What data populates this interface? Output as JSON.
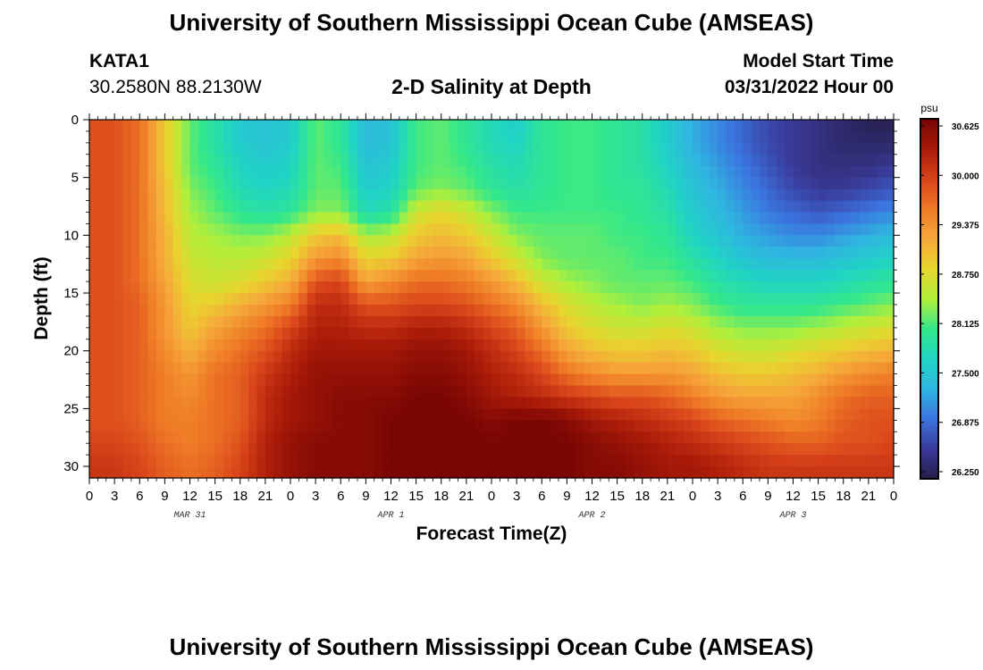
{
  "header": {
    "title": "University of Southern Mississippi Ocean Cube (AMSEAS)",
    "station_name": "KATA1",
    "station_coords": "30.2580N  88.2130W",
    "subtitle": "2-D Salinity at Depth",
    "model_start_label": "Model Start Time",
    "model_start_value": "03/31/2022 Hour 00"
  },
  "footer": {
    "title": "University of Southern Mississippi Ocean Cube (AMSEAS)"
  },
  "colors": {
    "colormap": [
      "#251d4a",
      "#3a3a99",
      "#3b74e0",
      "#2fb6e0",
      "#20d4c4",
      "#34e88a",
      "#b2ef3a",
      "#e8d52e",
      "#f6a83a",
      "#ef7a26",
      "#d8431a",
      "#a81a08",
      "#760404"
    ]
  },
  "chart_data": {
    "type": "heatmap",
    "title": "2-D Salinity at Depth",
    "xlabel": "Forecast Time(Z)",
    "ylabel": "Depth (ft)",
    "x_unit": "hours since 03/31/2022 00Z",
    "x_range": [
      0,
      96
    ],
    "x_tick_hours": [
      0,
      3,
      6,
      9,
      12,
      15,
      18,
      21,
      24,
      27,
      30,
      33,
      36,
      39,
      42,
      45,
      48,
      51,
      54,
      57,
      60,
      63,
      66,
      69,
      72,
      75,
      78,
      81,
      84,
      87,
      90,
      93,
      96
    ],
    "x_tick_labels": [
      "0",
      "3",
      "6",
      "9",
      "12",
      "15",
      "18",
      "21",
      "0",
      "3",
      "6",
      "9",
      "12",
      "15",
      "18",
      "21",
      "0",
      "3",
      "6",
      "9",
      "12",
      "15",
      "18",
      "21",
      "0",
      "3",
      "6",
      "9",
      "12",
      "15",
      "18",
      "21",
      "0"
    ],
    "date_labels": [
      {
        "label": "MAR 31",
        "hour": 12
      },
      {
        "label": "APR 1",
        "hour": 36
      },
      {
        "label": "APR 2",
        "hour": 60
      },
      {
        "label": "APR 3",
        "hour": 84
      }
    ],
    "y_range": [
      0,
      31
    ],
    "y_ticks": [
      0,
      5,
      10,
      15,
      20,
      25,
      30
    ],
    "y_tick_labels": [
      "0",
      "5",
      "10",
      "15",
      "20",
      "25",
      "30"
    ],
    "colorbar": {
      "unit": "psu",
      "min": 26.25,
      "max": 30.625,
      "ticks": [
        26.25,
        26.875,
        27.5,
        28.125,
        28.75,
        29.375,
        30.0,
        30.625
      ],
      "tick_labels": [
        "26.250",
        "26.875",
        "27.500",
        "28.125",
        "28.750",
        "29.375",
        "30.000",
        "30.625"
      ]
    },
    "grid_depths_ft": [
      0,
      2,
      4,
      6,
      8,
      10,
      12,
      14,
      16,
      18,
      20,
      22,
      24,
      26,
      28,
      30
    ],
    "grid_hours": [
      0,
      3,
      6,
      9,
      12,
      15,
      18,
      21,
      24,
      27,
      30,
      33,
      36,
      39,
      42,
      45,
      48,
      51,
      54,
      57,
      60,
      63,
      66,
      69,
      72,
      75,
      78,
      81,
      84,
      87,
      90,
      93,
      96
    ],
    "salinity_psu": [
      [
        29.8,
        29.8,
        29.6,
        28.9,
        28.2,
        27.9,
        27.6,
        27.5,
        27.6,
        28.2,
        28.0,
        27.4,
        27.5,
        28.1,
        28.2,
        28.0,
        27.8,
        27.6,
        28.0,
        28.1,
        28.1,
        28.0,
        27.9,
        27.6,
        27.3,
        27.1,
        26.9,
        26.7,
        26.6,
        26.5,
        26.4,
        26.3,
        26.3
      ],
      [
        29.8,
        29.8,
        29.6,
        28.9,
        28.2,
        27.9,
        27.6,
        27.5,
        27.6,
        28.2,
        28.0,
        27.4,
        27.5,
        28.1,
        28.2,
        28.0,
        27.8,
        27.7,
        28.0,
        28.1,
        28.1,
        28.0,
        27.9,
        27.6,
        27.3,
        27.1,
        26.9,
        26.7,
        26.6,
        26.5,
        26.4,
        26.4,
        26.4
      ],
      [
        29.8,
        29.8,
        29.6,
        28.9,
        28.2,
        28.0,
        27.7,
        27.6,
        27.7,
        28.2,
        28.1,
        27.5,
        27.6,
        28.1,
        28.2,
        28.1,
        27.9,
        27.8,
        28.0,
        28.1,
        28.1,
        28.0,
        27.9,
        27.7,
        27.4,
        27.2,
        27.0,
        26.8,
        26.6,
        26.5,
        26.5,
        26.5,
        26.6
      ],
      [
        29.8,
        29.8,
        29.6,
        29.0,
        28.3,
        28.1,
        27.8,
        27.7,
        27.8,
        28.2,
        28.2,
        27.6,
        27.7,
        28.2,
        28.3,
        28.2,
        28.0,
        27.9,
        28.0,
        28.1,
        28.1,
        28.0,
        28.0,
        27.8,
        27.5,
        27.3,
        27.1,
        26.9,
        26.7,
        26.6,
        26.6,
        26.7,
        26.8
      ],
      [
        29.8,
        29.8,
        29.6,
        29.0,
        28.4,
        28.2,
        28.0,
        27.9,
        28.0,
        28.3,
        28.3,
        27.8,
        27.9,
        28.6,
        28.8,
        28.6,
        28.3,
        28.1,
        28.1,
        28.1,
        28.1,
        28.1,
        28.0,
        27.9,
        27.6,
        27.4,
        27.2,
        27.0,
        26.9,
        26.8,
        26.9,
        27.0,
        27.1
      ],
      [
        29.8,
        29.8,
        29.6,
        29.1,
        28.5,
        28.4,
        28.3,
        28.3,
        28.5,
        28.9,
        29.0,
        28.4,
        28.5,
        28.9,
        29.0,
        28.9,
        28.6,
        28.3,
        28.2,
        28.2,
        28.2,
        28.1,
        28.1,
        28.0,
        27.7,
        27.5,
        27.3,
        27.2,
        27.1,
        27.1,
        27.2,
        27.3,
        27.4
      ],
      [
        29.8,
        29.8,
        29.6,
        29.1,
        28.6,
        28.5,
        28.5,
        28.6,
        28.8,
        29.3,
        29.4,
        28.8,
        28.9,
        29.2,
        29.3,
        29.2,
        28.9,
        28.6,
        28.3,
        28.2,
        28.2,
        28.2,
        28.1,
        28.1,
        27.9,
        27.7,
        27.5,
        27.4,
        27.4,
        27.4,
        27.5,
        27.6,
        27.7
      ],
      [
        29.8,
        29.8,
        29.6,
        29.2,
        28.7,
        28.6,
        28.7,
        28.9,
        29.1,
        29.8,
        29.9,
        29.2,
        29.4,
        29.6,
        29.6,
        29.5,
        29.3,
        29.0,
        28.6,
        28.4,
        28.3,
        28.2,
        28.2,
        28.2,
        28.1,
        27.9,
        27.8,
        27.7,
        27.7,
        27.7,
        27.8,
        27.9,
        28.0
      ],
      [
        29.8,
        29.8,
        29.7,
        29.3,
        28.8,
        28.9,
        29.1,
        29.3,
        29.5,
        30.1,
        30.1,
        29.8,
        29.8,
        29.9,
        29.9,
        29.8,
        29.6,
        29.4,
        29.0,
        28.7,
        28.5,
        28.4,
        28.3,
        28.4,
        28.3,
        28.1,
        28.0,
        28.0,
        28.0,
        28.0,
        28.1,
        28.2,
        28.3
      ],
      [
        29.8,
        29.8,
        29.7,
        29.3,
        28.9,
        29.2,
        29.4,
        29.6,
        29.9,
        30.2,
        30.2,
        30.1,
        30.1,
        30.2,
        30.2,
        30.1,
        29.9,
        29.7,
        29.3,
        28.9,
        28.7,
        28.6,
        28.6,
        28.7,
        28.6,
        28.4,
        28.3,
        28.3,
        28.3,
        28.4,
        28.5,
        28.6,
        28.7
      ],
      [
        29.8,
        29.8,
        29.7,
        29.4,
        29.1,
        29.4,
        29.6,
        29.8,
        30.1,
        30.3,
        30.3,
        30.3,
        30.3,
        30.4,
        30.4,
        30.3,
        30.1,
        29.9,
        29.6,
        29.2,
        29.0,
        28.9,
        28.9,
        29.0,
        28.9,
        28.7,
        28.6,
        28.6,
        28.7,
        28.8,
        28.9,
        29.0,
        29.1
      ],
      [
        29.8,
        29.8,
        29.7,
        29.5,
        29.3,
        29.6,
        29.7,
        30.0,
        30.2,
        30.4,
        30.4,
        30.4,
        30.4,
        30.5,
        30.5,
        30.4,
        30.2,
        30.1,
        29.9,
        29.6,
        29.4,
        29.3,
        29.3,
        29.3,
        29.2,
        29.0,
        28.9,
        28.9,
        29.0,
        29.1,
        29.3,
        29.4,
        29.5
      ],
      [
        29.8,
        29.8,
        29.7,
        29.5,
        29.4,
        29.6,
        29.7,
        30.1,
        30.3,
        30.4,
        30.5,
        30.5,
        30.5,
        30.6,
        30.6,
        30.5,
        30.3,
        30.2,
        30.1,
        30.0,
        29.9,
        29.8,
        29.8,
        29.7,
        29.5,
        29.3,
        29.2,
        29.2,
        29.2,
        29.4,
        29.6,
        29.7,
        29.7
      ],
      [
        29.8,
        29.8,
        29.7,
        29.5,
        29.5,
        29.6,
        29.7,
        30.1,
        30.3,
        30.4,
        30.5,
        30.5,
        30.6,
        30.6,
        30.6,
        30.6,
        30.5,
        30.6,
        30.6,
        30.5,
        30.3,
        30.2,
        30.1,
        30.0,
        29.9,
        29.7,
        29.6,
        29.5,
        29.4,
        29.5,
        29.7,
        29.8,
        29.8
      ],
      [
        29.9,
        29.9,
        29.8,
        29.6,
        29.5,
        29.6,
        29.8,
        30.2,
        30.4,
        30.5,
        30.5,
        30.5,
        30.6,
        30.6,
        30.6,
        30.6,
        30.6,
        30.6,
        30.6,
        30.6,
        30.5,
        30.4,
        30.3,
        30.2,
        30.1,
        30.0,
        29.9,
        29.8,
        29.7,
        29.7,
        29.8,
        29.8,
        29.9
      ],
      [
        30.0,
        30.0,
        29.9,
        29.7,
        29.6,
        29.7,
        29.9,
        30.2,
        30.4,
        30.5,
        30.5,
        30.5,
        30.6,
        30.6,
        30.6,
        30.6,
        30.6,
        30.6,
        30.6,
        30.6,
        30.5,
        30.5,
        30.4,
        30.3,
        30.3,
        30.2,
        30.1,
        30.0,
        30.0,
        30.0,
        30.0,
        30.0,
        30.0
      ]
    ]
  }
}
